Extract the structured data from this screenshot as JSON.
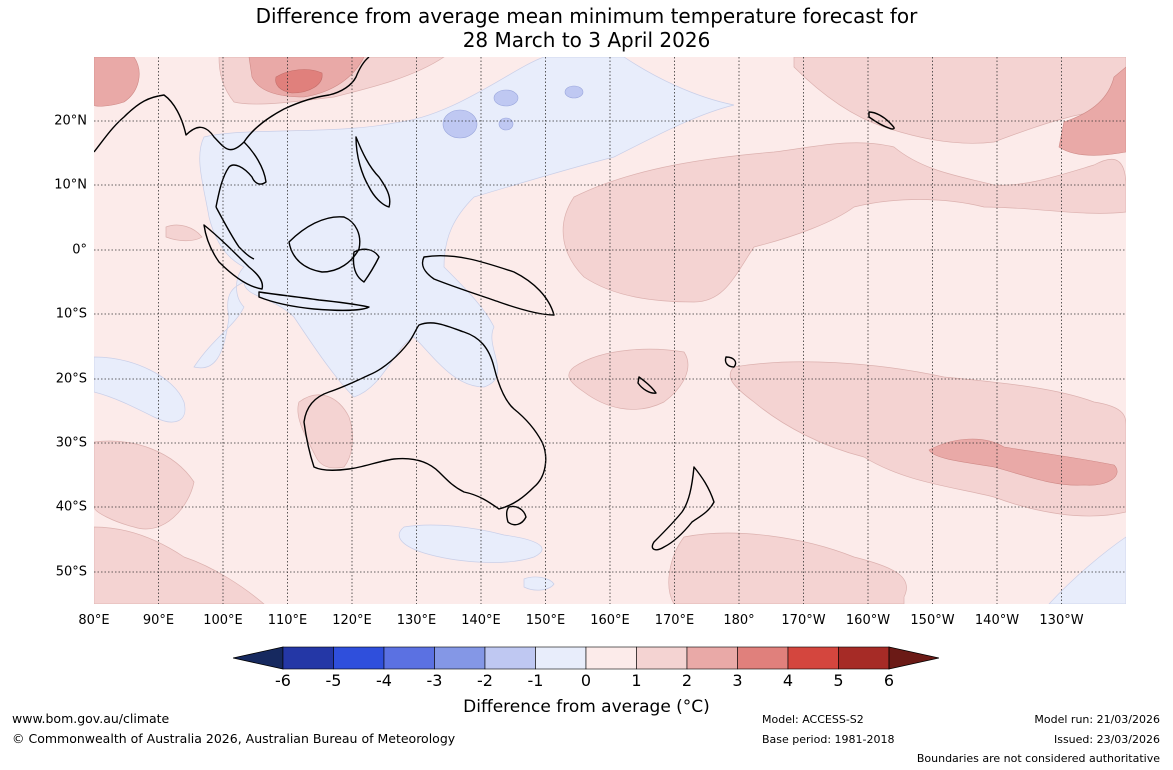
{
  "title": {
    "line1": "Difference from average mean minimum temperature forecast for",
    "line2": "28 March to 3 April 2026"
  },
  "map": {
    "longitude_labels": [
      "80°E",
      "90°E",
      "100°E",
      "110°E",
      "120°E",
      "130°E",
      "140°E",
      "150°E",
      "160°E",
      "170°E",
      "180°",
      "170°W",
      "160°W",
      "150°W",
      "140°W",
      "130°W"
    ],
    "latitude_labels": [
      "20°N",
      "10°N",
      "0°",
      "10°S",
      "20°S",
      "30°S",
      "40°S",
      "50°S"
    ]
  },
  "colorbar": {
    "ticks": [
      "-6",
      "-5",
      "-4",
      "-3",
      "-2",
      "-1",
      "0",
      "1",
      "2",
      "3",
      "4",
      "5",
      "6"
    ],
    "colors": [
      "#16295f",
      "#2437a6",
      "#2f4fdc",
      "#5b71e2",
      "#8497e6",
      "#bfc8f2",
      "#e8edfb",
      "#fcebea",
      "#f4d3d2",
      "#e9a9a7",
      "#e0807c",
      "#d4463e",
      "#a62b26",
      "#6b1a16"
    ],
    "label": "Difference from average (°C)"
  },
  "footer": {
    "website": "www.bom.gov.au/climate",
    "copyright": "© Commonwealth of Australia 2026, Australian Bureau of Meteorology",
    "model": "Model: ACCESS-S2",
    "base_period": "Base period: 1981-2018",
    "model_run": "Model run: 21/03/2026",
    "issued": "Issued: 23/03/2026",
    "disclaimer": "Boundaries are not considered authoritative"
  }
}
